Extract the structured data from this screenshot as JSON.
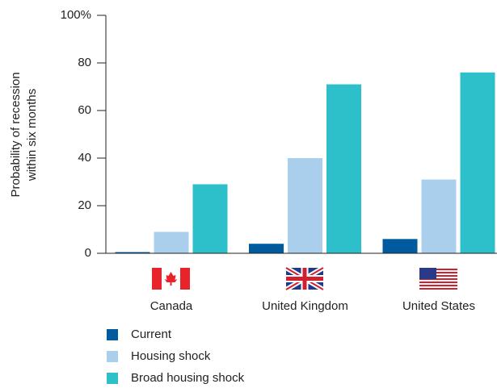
{
  "chart_data": {
    "type": "bar",
    "y_label": [
      "Probability of recession",
      "within six months"
    ],
    "categories": [
      "Canada",
      "United Kingdom",
      "United States"
    ],
    "series": [
      {
        "name": "Current",
        "color": "#005b9e",
        "values": [
          0.5,
          4,
          6
        ]
      },
      {
        "name": "Housing shock",
        "color": "#a9cfec",
        "values": [
          9,
          40,
          31
        ]
      },
      {
        "name": "Broad housing shock",
        "color": "#2dbfca",
        "values": [
          29,
          71,
          76
        ]
      }
    ],
    "ylim": [
      0,
      100
    ],
    "yticks": [
      0,
      20,
      40,
      60,
      80,
      {
        "value": 100,
        "label": "100%"
      }
    ]
  }
}
